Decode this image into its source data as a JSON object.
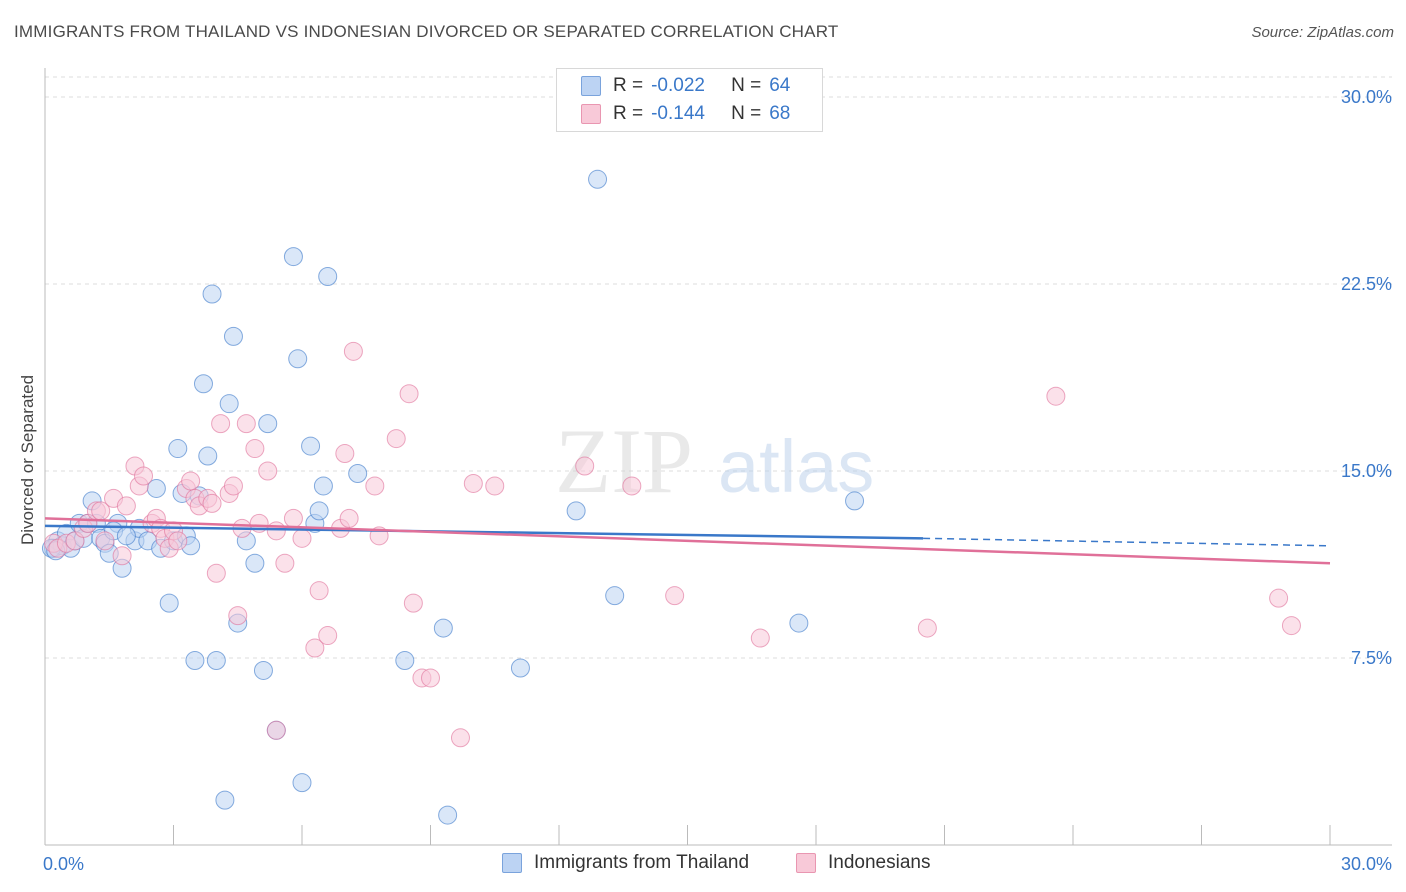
{
  "title": "IMMIGRANTS FROM THAILAND VS INDONESIAN DIVORCED OR SEPARATED CORRELATION CHART",
  "source": "Source: ZipAtlas.com",
  "watermark": {
    "zip": "ZIP",
    "atlas": "atlas"
  },
  "legend": {
    "r_label": "R =",
    "n_label": "N =",
    "series": [
      {
        "name": "Immigrants from Thailand",
        "r": "-0.022",
        "n": "64",
        "color": "#3a78c9"
      },
      {
        "name": "Indonesians",
        "r": "-0.144",
        "n": "68",
        "color": "#e07099"
      }
    ]
  },
  "chart_data": {
    "type": "scatter",
    "title": "IMMIGRANTS FROM THAILAND VS INDONESIAN DIVORCED OR SEPARATED CORRELATION CHART",
    "xlabel": "",
    "ylabel": "Divorced or Separated",
    "xlim": [
      0,
      30
    ],
    "ylim": [
      0,
      30.5
    ],
    "x_tick_labels": [
      "0.0%",
      "30.0%"
    ],
    "y_ticks": [
      7.5,
      15.0,
      22.5,
      30.0
    ],
    "y_tick_labels": [
      "7.5%",
      "15.0%",
      "22.5%",
      "30.0%"
    ],
    "grid": true,
    "series": [
      {
        "name": "Immigrants from Thailand",
        "color": "#3a78c9",
        "fill": "#bcd3f3",
        "trend": {
          "x0": 0,
          "y0": 12.8,
          "x1": 20.5,
          "y1": 12.3,
          "dash_to_x": 30,
          "dash_to_y": 12.0
        },
        "points": [
          [
            0.2,
            11.9
          ],
          [
            0.3,
            12.2
          ],
          [
            0.4,
            12.0
          ],
          [
            0.5,
            12.5
          ],
          [
            0.6,
            11.9
          ],
          [
            0.7,
            12.2
          ],
          [
            0.8,
            12.9
          ],
          [
            0.9,
            12.3
          ],
          [
            1.0,
            12.9
          ],
          [
            1.1,
            13.8
          ],
          [
            1.2,
            12.9
          ],
          [
            1.3,
            12.3
          ],
          [
            1.4,
            12.1
          ],
          [
            1.5,
            11.7
          ],
          [
            1.7,
            12.9
          ],
          [
            1.8,
            11.1
          ],
          [
            2.1,
            12.2
          ],
          [
            2.2,
            12.7
          ],
          [
            2.4,
            12.2
          ],
          [
            2.6,
            14.3
          ],
          [
            2.7,
            11.9
          ],
          [
            2.9,
            9.7
          ],
          [
            3.0,
            12.2
          ],
          [
            3.1,
            15.9
          ],
          [
            3.2,
            14.1
          ],
          [
            3.3,
            12.4
          ],
          [
            3.4,
            12.0
          ],
          [
            3.5,
            7.4
          ],
          [
            3.6,
            14.0
          ],
          [
            3.7,
            18.5
          ],
          [
            3.8,
            15.6
          ],
          [
            3.9,
            22.1
          ],
          [
            4.0,
            7.4
          ],
          [
            4.2,
            1.8
          ],
          [
            4.3,
            17.7
          ],
          [
            4.4,
            20.4
          ],
          [
            4.5,
            8.9
          ],
          [
            4.7,
            12.2
          ],
          [
            4.9,
            11.3
          ],
          [
            5.1,
            7.0
          ],
          [
            5.2,
            16.9
          ],
          [
            5.4,
            4.6
          ],
          [
            5.8,
            23.6
          ],
          [
            5.9,
            19.5
          ],
          [
            6.0,
            2.5
          ],
          [
            6.2,
            16.0
          ],
          [
            6.3,
            12.9
          ],
          [
            6.4,
            13.4
          ],
          [
            6.5,
            14.4
          ],
          [
            6.6,
            22.8
          ],
          [
            7.3,
            14.9
          ],
          [
            8.4,
            7.4
          ],
          [
            9.3,
            8.7
          ],
          [
            9.4,
            1.2
          ],
          [
            11.1,
            7.1
          ],
          [
            12.4,
            13.4
          ],
          [
            12.9,
            26.7
          ],
          [
            13.3,
            10.0
          ],
          [
            17.6,
            8.9
          ],
          [
            18.9,
            13.8
          ],
          [
            0.15,
            11.9
          ],
          [
            0.25,
            11.8
          ],
          [
            1.6,
            12.6
          ],
          [
            1.9,
            12.4
          ]
        ]
      },
      {
        "name": "Indonesians",
        "color": "#e07099",
        "fill": "#f8c9d8",
        "trend": {
          "x0": 0,
          "y0": 13.1,
          "x1": 30,
          "y1": 11.3
        },
        "points": [
          [
            0.2,
            12.1
          ],
          [
            0.3,
            11.9
          ],
          [
            0.5,
            12.1
          ],
          [
            0.7,
            12.2
          ],
          [
            0.9,
            12.7
          ],
          [
            1.0,
            12.9
          ],
          [
            1.2,
            13.4
          ],
          [
            1.3,
            13.4
          ],
          [
            1.4,
            12.2
          ],
          [
            1.6,
            13.9
          ],
          [
            1.8,
            11.6
          ],
          [
            1.9,
            13.6
          ],
          [
            2.1,
            15.2
          ],
          [
            2.2,
            14.4
          ],
          [
            2.3,
            14.8
          ],
          [
            2.5,
            12.9
          ],
          [
            2.6,
            13.1
          ],
          [
            2.7,
            12.7
          ],
          [
            2.8,
            12.3
          ],
          [
            2.9,
            11.9
          ],
          [
            3.0,
            12.6
          ],
          [
            3.1,
            12.2
          ],
          [
            3.3,
            14.3
          ],
          [
            3.4,
            14.6
          ],
          [
            3.5,
            13.9
          ],
          [
            3.6,
            13.6
          ],
          [
            3.8,
            13.9
          ],
          [
            3.9,
            13.7
          ],
          [
            4.0,
            10.9
          ],
          [
            4.1,
            16.9
          ],
          [
            4.3,
            14.1
          ],
          [
            4.4,
            14.4
          ],
          [
            4.5,
            9.2
          ],
          [
            4.6,
            12.7
          ],
          [
            4.7,
            16.9
          ],
          [
            4.9,
            15.9
          ],
          [
            5.0,
            12.9
          ],
          [
            5.2,
            15.0
          ],
          [
            5.4,
            12.6
          ],
          [
            5.6,
            11.3
          ],
          [
            5.8,
            13.1
          ],
          [
            6.0,
            12.3
          ],
          [
            6.3,
            7.9
          ],
          [
            6.4,
            10.2
          ],
          [
            6.6,
            8.4
          ],
          [
            6.9,
            12.7
          ],
          [
            7.0,
            15.7
          ],
          [
            7.1,
            13.1
          ],
          [
            7.2,
            19.8
          ],
          [
            7.7,
            14.4
          ],
          [
            7.8,
            12.4
          ],
          [
            8.2,
            16.3
          ],
          [
            8.5,
            18.1
          ],
          [
            8.6,
            9.7
          ],
          [
            8.8,
            6.7
          ],
          [
            9.0,
            6.7
          ],
          [
            10.0,
            14.5
          ],
          [
            10.5,
            14.4
          ],
          [
            12.6,
            15.2
          ],
          [
            13.7,
            14.4
          ],
          [
            14.7,
            10.0
          ],
          [
            16.7,
            8.3
          ],
          [
            20.6,
            8.7
          ],
          [
            23.6,
            18.0
          ],
          [
            28.8,
            9.9
          ],
          [
            29.1,
            8.8
          ],
          [
            5.4,
            4.6
          ],
          [
            9.7,
            4.3
          ]
        ]
      }
    ]
  }
}
